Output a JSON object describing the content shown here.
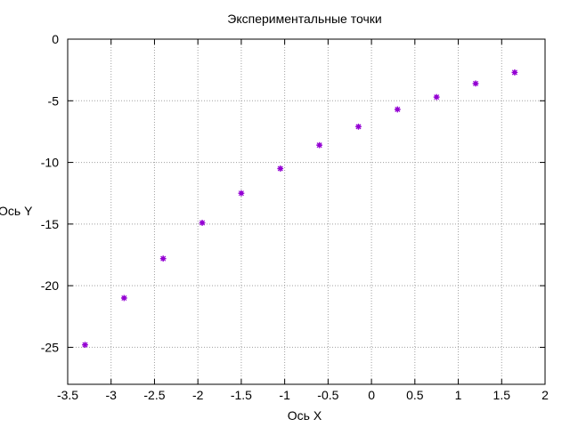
{
  "chart_data": {
    "type": "scatter",
    "title": "Экспериментальные точки",
    "xlabel": "Ось X",
    "ylabel": "Ось Y",
    "xlim": [
      -3.5,
      2
    ],
    "ylim": [
      -28,
      0
    ],
    "x_ticks": [
      -3.5,
      -3,
      -2.5,
      -2,
      -1.5,
      -1,
      -0.5,
      0,
      0.5,
      1,
      1.5,
      2
    ],
    "x_tick_labels": [
      "-3.5",
      "-3",
      "-2.5",
      "-2",
      "-1.5",
      "-1",
      "-0.5",
      "0",
      "0.5",
      "1",
      "1.5",
      "2"
    ],
    "y_ticks": [
      0,
      -5,
      -10,
      -15,
      -20,
      -25
    ],
    "y_tick_labels": [
      "0",
      "-5",
      "-10",
      "-15",
      "-20",
      "-25"
    ],
    "grid": true,
    "grid_style": "dotted",
    "marker_color": "#9400d3",
    "points": [
      {
        "x": -3.3,
        "y": -24.8
      },
      {
        "x": -2.85,
        "y": -21.0
      },
      {
        "x": -2.4,
        "y": -17.8
      },
      {
        "x": -1.95,
        "y": -14.9
      },
      {
        "x": -1.5,
        "y": -12.5
      },
      {
        "x": -1.05,
        "y": -10.5
      },
      {
        "x": -0.6,
        "y": -8.6
      },
      {
        "x": -0.15,
        "y": -7.1
      },
      {
        "x": 0.3,
        "y": -5.7
      },
      {
        "x": 0.75,
        "y": -4.7
      },
      {
        "x": 1.2,
        "y": -3.6
      },
      {
        "x": 1.65,
        "y": -2.7
      }
    ]
  }
}
